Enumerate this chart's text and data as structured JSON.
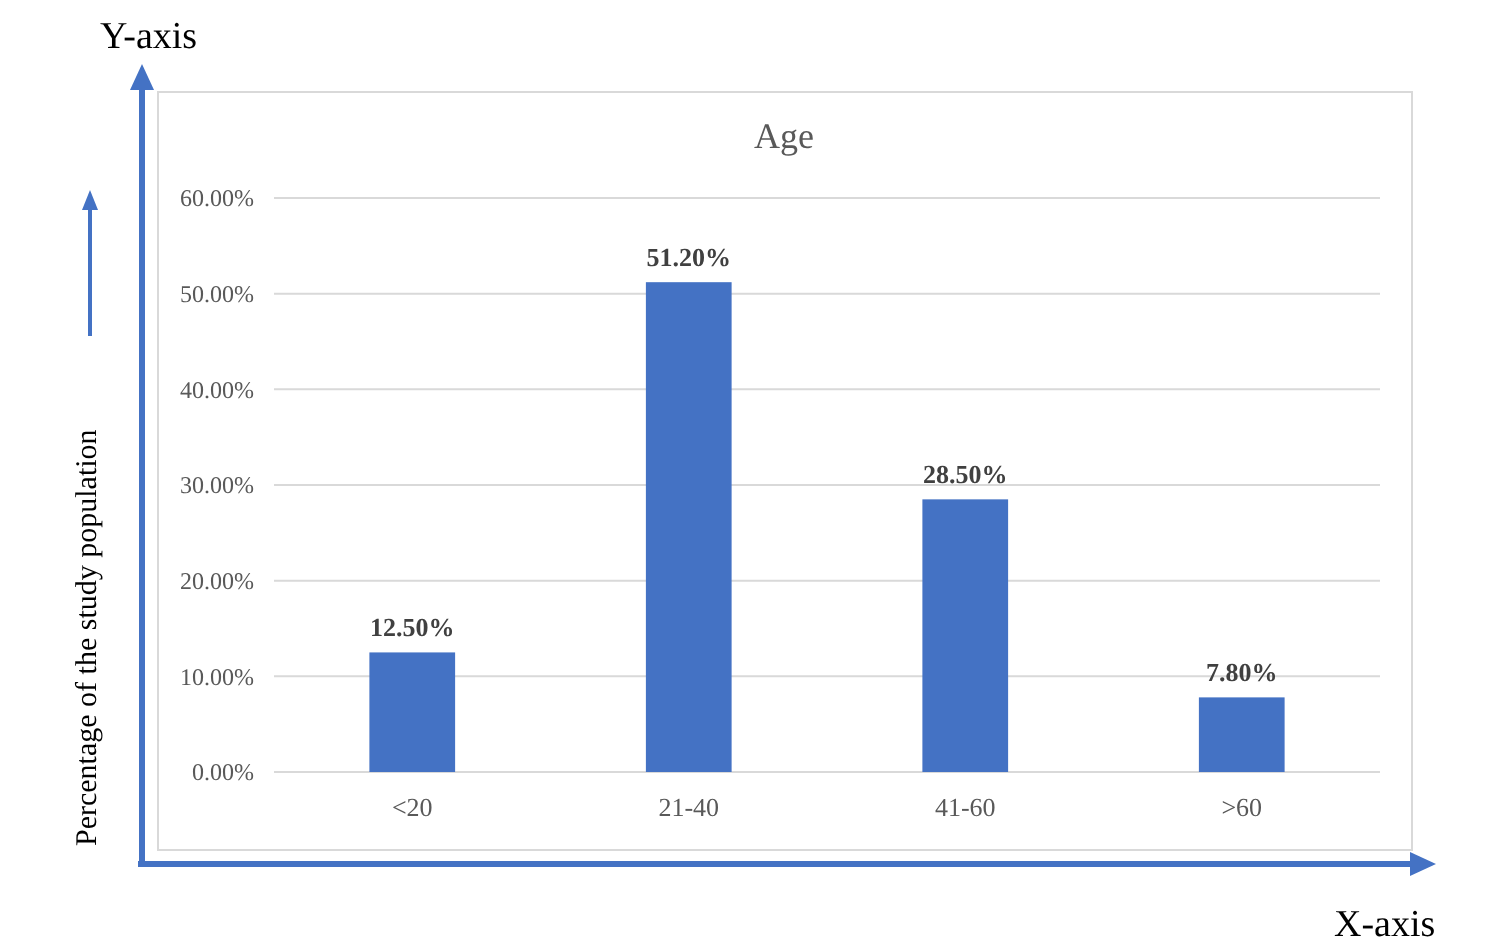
{
  "chart_data": {
    "type": "bar",
    "title": "Age",
    "ylabel": "Percentage of the study population",
    "annotations": [
      "Y-axis",
      "X-axis"
    ],
    "categories": [
      "<20",
      "21-40",
      "41-60",
      ">60"
    ],
    "values": [
      12.5,
      51.2,
      28.5,
      7.8
    ],
    "color": "#4472c4",
    "value_labels": [
      "12.50%",
      "51.20%",
      "28.50%",
      "7.80%"
    ],
    "ylim": [
      0,
      60
    ],
    "yticks": [
      {
        "value": 0,
        "label": "0.00%"
      },
      {
        "value": 10,
        "label": "10.00%"
      },
      {
        "value": 20,
        "label": "20.00%"
      },
      {
        "value": 30,
        "label": "30.00%"
      },
      {
        "value": 40,
        "label": "40.00%"
      },
      {
        "value": 50,
        "label": "50.00%"
      },
      {
        "value": 60,
        "label": "60.00%"
      }
    ],
    "grid": "y"
  }
}
